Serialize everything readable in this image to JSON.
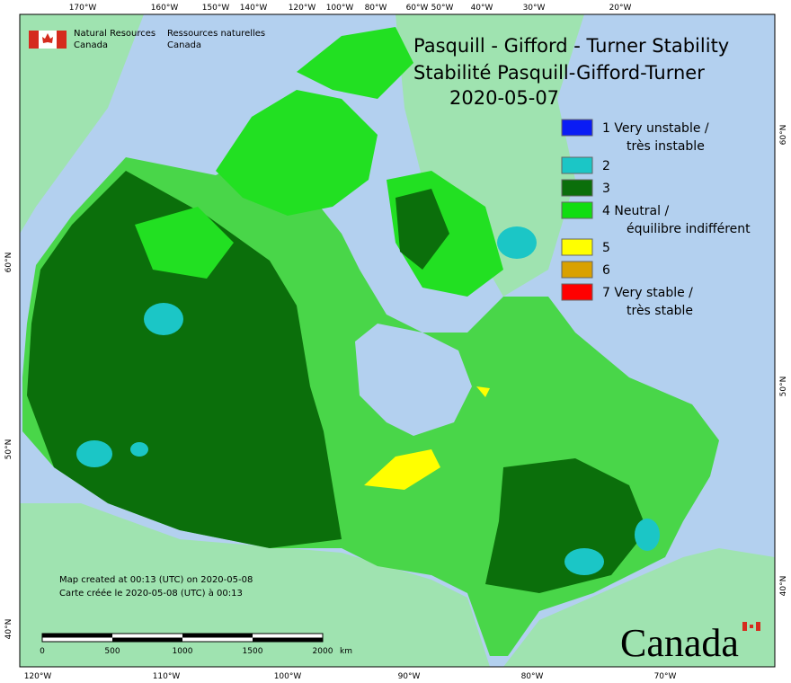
{
  "header": {
    "agency_en": [
      "Natural Resources",
      "Canada"
    ],
    "agency_fr": [
      "Ressources naturelles",
      "Canada"
    ]
  },
  "title": [
    "Pasquill - Gifford - Turner Stability",
    "Stabilité Pasquill-Gifford-Turner",
    "2020-05-07"
  ],
  "legend": [
    {
      "color": "#0a1cf5",
      "label": [
        "1 Very unstable /",
        "très instable"
      ]
    },
    {
      "color": "#1bc6c6",
      "label": [
        "2"
      ]
    },
    {
      "color": "#0b6f0b",
      "label": [
        "3"
      ]
    },
    {
      "color": "#11dd11",
      "label": [
        "4 Neutral /",
        "équilibre indifférent"
      ]
    },
    {
      "color": "#ffff00",
      "label": [
        "5"
      ]
    },
    {
      "color": "#d9a100",
      "label": [
        "6"
      ]
    },
    {
      "color": "#ff0000",
      "label": [
        "7 Very stable /",
        "très stable"
      ]
    }
  ],
  "graticule": {
    "top": [
      "170°W",
      "160°W",
      "150°W",
      "140°W",
      "120°W",
      "100°W",
      "80°W",
      "60°W",
      "50°W",
      "40°W",
      "30°W",
      "20°W"
    ],
    "bottom": [
      "120°W",
      "110°W",
      "100°W",
      "90°W",
      "80°W",
      "70°W"
    ],
    "left": [
      "60°N",
      "50°N",
      "40°N"
    ],
    "right": [
      "60°N",
      "50°N",
      "40°N"
    ]
  },
  "footer": [
    "Map created at 00:13 (UTC) on 2020-05-08",
    "Carte créée le 2020-05-08 (UTC) à 00:13"
  ],
  "scale": {
    "labels": [
      "0",
      "500",
      "1000",
      "1500",
      "2000"
    ],
    "unit": "km"
  },
  "wordmark": "Canada"
}
